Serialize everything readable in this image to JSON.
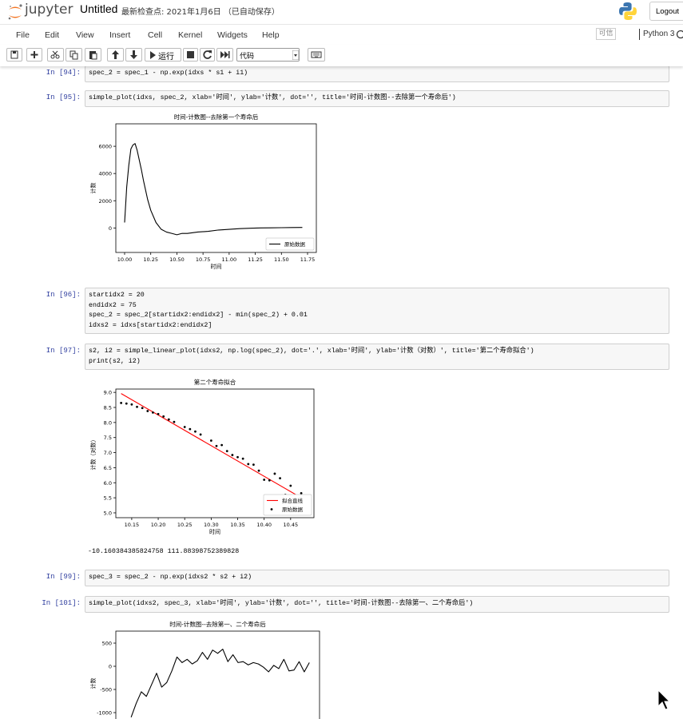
{
  "header": {
    "logo": "jupyter",
    "title": "Untitled",
    "checkpoint": "最新检查点: 2021年1月6日 （已自动保存）",
    "logout": "Logout"
  },
  "menu": {
    "items": [
      "File",
      "Edit",
      "View",
      "Insert",
      "Cell",
      "Kernel",
      "Widgets",
      "Help"
    ],
    "trusted": "可信",
    "kernel": "Python 3"
  },
  "toolbar": {
    "run": "运行",
    "cell_type": "代码"
  },
  "cells": [
    {
      "prompt": "In [94]:",
      "code": [
        "spec_2 = spec_1 - np.exp(idxs * s1 + i1)"
      ]
    },
    {
      "prompt": "In [95]:",
      "code": [
        "simple_plot(idxs, spec_2, xlab='时间', ylab='计数', dot='', title='时间-计数图--去除第一个寿命后')"
      ],
      "chart_data": {
        "type": "line",
        "title": "时间-计数图--去除第一个寿命后",
        "xlabel": "时间",
        "ylabel": "计数",
        "x": [
          10.0,
          10.02,
          10.04,
          10.06,
          10.08,
          10.1,
          10.12,
          10.14,
          10.16,
          10.18,
          10.2,
          10.22,
          10.25,
          10.3,
          10.35,
          10.4,
          10.45,
          10.5,
          10.55,
          10.6,
          10.65,
          10.7,
          10.8,
          10.9,
          11.0,
          11.1,
          11.2,
          11.3,
          11.4,
          11.5,
          11.6,
          11.7
        ],
        "series": [
          {
            "name": "原始数据",
            "color": "#000000",
            "values": [
              400,
              3000,
              4600,
              5800,
              6100,
              6200,
              5700,
              5000,
              4300,
              3500,
              2800,
              2100,
              1300,
              400,
              -100,
              -300,
              -400,
              -500,
              -400,
              -400,
              -350,
              -300,
              -250,
              -150,
              -100,
              -50,
              -20,
              0,
              10,
              20,
              30,
              40
            ]
          }
        ],
        "xlim": [
          9.916,
          11.834
        ],
        "ylim": [
          -1800,
          7650
        ],
        "xticks": [
          {
            "value": 10,
            "label": "10.00"
          },
          10.25,
          {
            "value": 10.5,
            "label": "10.50"
          },
          10.75,
          {
            "value": 11,
            "label": "11.00"
          },
          11.25,
          {
            "value": 11.5,
            "label": "11.50"
          },
          11.75
        ],
        "yticks": [
          0,
          2000,
          4000,
          6000
        ],
        "legend": "lower right",
        "grid": false
      }
    },
    {
      "prompt": "In [96]:",
      "code": [
        "startidx2 = 20",
        "endidx2 = 75",
        "spec_2 = spec_2[startidx2:endidx2] - min(spec_2) + 0.01",
        "idxs2 = idxs[startidx2:endidx2]"
      ]
    },
    {
      "prompt": "In [97]:",
      "code": [
        "s2, i2 = simple_linear_plot(idxs2, np.log(spec_2), dot='.', xlab='时间', ylab='计数（对数）', title='第二个寿命拟合')",
        "print(s2, i2)"
      ],
      "chart_data": {
        "type": "scatter",
        "title": "第二个寿命拟合",
        "xlabel": "时间",
        "ylabel": "计数（对数）",
        "series": [
          {
            "name": "拟合直线",
            "type": "line",
            "color": "#ff0000",
            "x": [
              10.13,
              10.48
            ],
            "values": [
              8.96,
              5.4
            ]
          },
          {
            "name": "原始数据",
            "type": "scatter",
            "color": "#000000",
            "x": [
              10.13,
              10.14,
              10.15,
              10.16,
              10.17,
              10.18,
              10.19,
              10.2,
              10.21,
              10.22,
              10.23,
              10.25,
              10.26,
              10.27,
              10.28,
              10.3,
              10.31,
              10.32,
              10.33,
              10.34,
              10.35,
              10.36,
              10.37,
              10.38,
              10.39,
              10.4,
              10.41,
              10.42,
              10.43,
              10.44,
              10.45,
              10.47
            ],
            "values": [
              8.65,
              8.63,
              8.6,
              8.52,
              8.48,
              8.38,
              8.33,
              8.28,
              8.2,
              8.1,
              8.02,
              7.85,
              7.78,
              7.7,
              7.6,
              7.4,
              7.22,
              7.25,
              7.05,
              6.92,
              6.85,
              6.8,
              6.62,
              6.6,
              6.4,
              6.1,
              6.08,
              6.3,
              6.15,
              5.6,
              5.9,
              5.65
            ]
          }
        ],
        "xlim": [
          10.12,
          10.494
        ],
        "ylim": [
          4.84,
          9.11
        ],
        "xticks": [
          10.15,
          {
            "value": 10.2,
            "label": "10.20"
          },
          10.25,
          {
            "value": 10.3,
            "label": "10.30"
          },
          10.35,
          {
            "value": 10.4,
            "label": "10.40"
          },
          10.45
        ],
        "yticks": [
          {
            "value": 5,
            "label": "5.0"
          },
          5.5,
          {
            "value": 6,
            "label": "6.0"
          },
          6.5,
          {
            "value": 7,
            "label": "7.0"
          },
          7.5,
          {
            "value": 8,
            "label": "8.0"
          },
          8.5,
          {
            "value": 9,
            "label": "9.0"
          }
        ],
        "legend": "lower right",
        "grid": false
      },
      "output": "-10.160384385824758 111.88398752389828"
    },
    {
      "prompt": "In [99]:",
      "code": [
        "spec_3 = spec_2 - np.exp(idxs2 * s2 + i2)"
      ]
    },
    {
      "prompt": "In [101]:",
      "code": [
        "simple_plot(idxs2, spec_3, xlab='时间', ylab='计数', dot='', title='时间-计数图--去除第一、二个寿命后')"
      ],
      "chart_data": {
        "type": "line",
        "title": "时间-计数图--去除第一、二个寿命后",
        "ylabel": "计数",
        "x": [
          10.13,
          10.14,
          10.15,
          10.16,
          10.17,
          10.18,
          10.19,
          10.2,
          10.21,
          10.22,
          10.23,
          10.24,
          10.25,
          10.26,
          10.27,
          10.28,
          10.29,
          10.3,
          10.31,
          10.32,
          10.33,
          10.34,
          10.35,
          10.36,
          10.37,
          10.38,
          10.39,
          10.4,
          10.41,
          10.42,
          10.43,
          10.44,
          10.45,
          10.46,
          10.47,
          10.48
        ],
        "series": [
          {
            "color": "#000000",
            "values": [
              -1100,
              -800,
              -550,
              -650,
              -400,
              -150,
              -450,
              -350,
              -100,
              200,
              80,
              150,
              50,
              120,
              300,
              150,
              350,
              280,
              370,
              100,
              250,
              80,
              100,
              30,
              80,
              50,
              -20,
              -120,
              20,
              -50,
              150,
              -100,
              -80,
              100,
              -120,
              80
            ]
          }
        ],
        "xlim": [
          10.1,
          10.5
        ],
        "ylim": [
          -1500,
          759
        ],
        "yticks": [
          -1000,
          -500,
          0,
          500
        ],
        "grid": false
      }
    }
  ]
}
